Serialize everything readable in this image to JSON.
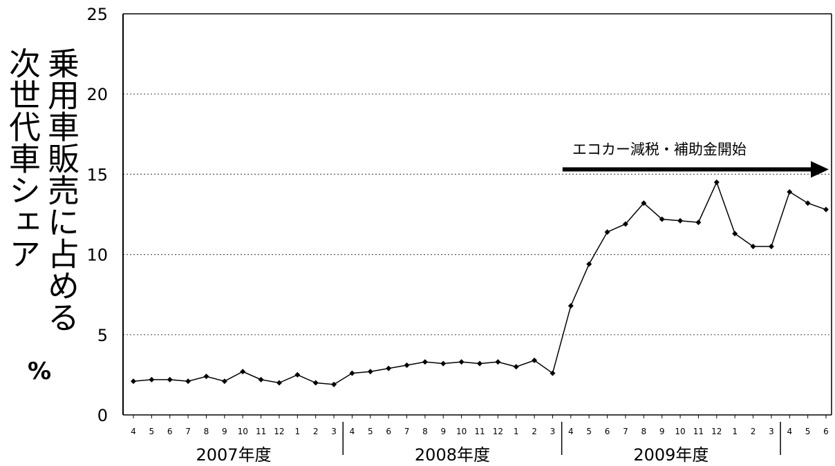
{
  "chart_data": {
    "type": "line",
    "ylabel_lines": [
      "次世代車シェア",
      "乗用車販売に占める"
    ],
    "ylabel_unit": "%",
    "ylim": [
      0,
      25
    ],
    "yticks": [
      0,
      5,
      10,
      15,
      20,
      25
    ],
    "grid": "horizontal dotted",
    "x": [
      "4",
      "5",
      "6",
      "7",
      "8",
      "9",
      "10",
      "11",
      "12",
      "1",
      "2",
      "3",
      "4",
      "5",
      "6",
      "7",
      "8",
      "9",
      "10",
      "11",
      "12",
      "1",
      "2",
      "3",
      "4",
      "5",
      "6",
      "7",
      "8",
      "9",
      "10",
      "11",
      "12",
      "1",
      "2",
      "3",
      "4",
      "5",
      "6"
    ],
    "year_groups": [
      {
        "label": "2007年度",
        "months": 12
      },
      {
        "label": "2008年度",
        "months": 12
      },
      {
        "label": "2009年度",
        "months": 12
      }
    ],
    "series": [
      {
        "values": [
          2.1,
          2.2,
          2.2,
          2.1,
          2.4,
          2.1,
          2.7,
          2.2,
          2.0,
          2.5,
          2.0,
          1.9,
          2.6,
          2.7,
          2.9,
          3.1,
          3.3,
          3.2,
          3.3,
          3.2,
          3.3,
          3.0,
          3.4,
          2.6,
          6.8,
          9.4,
          11.4,
          11.9,
          13.2,
          12.2,
          12.1,
          12.0,
          14.5,
          11.3,
          10.5,
          10.5,
          13.9,
          13.2,
          12.8
        ]
      }
    ],
    "annotation": {
      "text": "エコカー減税・補助金開始",
      "start_index": 24,
      "arrow": "to right edge"
    },
    "colors": {
      "line": "#000000",
      "marker": "#000000",
      "grid": "#555555"
    }
  }
}
